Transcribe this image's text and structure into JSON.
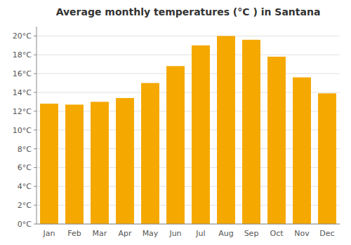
{
  "chart_data": {
    "type": "bar",
    "title": "Average monthly temperatures (°C ) in Santana",
    "categories": [
      "Jan",
      "Feb",
      "Mar",
      "Apr",
      "May",
      "Jun",
      "Jul",
      "Aug",
      "Sep",
      "Oct",
      "Nov",
      "Dec"
    ],
    "values": [
      12.8,
      12.7,
      13.0,
      13.4,
      15.0,
      16.8,
      19.0,
      20.0,
      19.6,
      17.8,
      15.6,
      13.9
    ],
    "color": "#F5A800",
    "ylim": [
      0,
      21
    ],
    "yticks": [
      {
        "value": 0,
        "label": "0°C"
      },
      {
        "value": 2,
        "label": "2°C"
      },
      {
        "value": 4,
        "label": "4°C"
      },
      {
        "value": 6,
        "label": "6°C"
      },
      {
        "value": 8,
        "label": "8°C"
      },
      {
        "value": 10,
        "label": "10°C"
      },
      {
        "value": 12,
        "label": "12°C"
      },
      {
        "value": 14,
        "label": "14°C"
      },
      {
        "value": 16,
        "label": "16°C"
      },
      {
        "value": 18,
        "label": "18°C"
      },
      {
        "value": 20,
        "label": "20°C"
      }
    ],
    "grid": true
  }
}
